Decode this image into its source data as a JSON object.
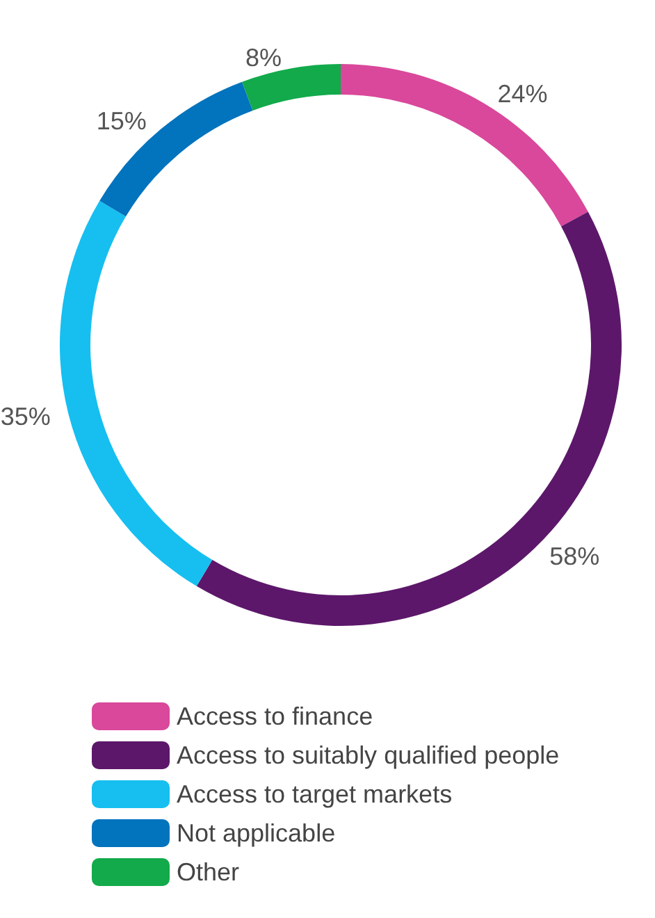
{
  "chart_data": {
    "type": "donut",
    "categories": [
      "Access to finance",
      "Access to suitably qualified people",
      "Access to target markets",
      "Not applicable",
      "Other"
    ],
    "values": [
      24,
      58,
      35,
      15,
      8
    ],
    "value_labels": [
      "24%",
      "58%",
      "35%",
      "15%",
      "8%"
    ],
    "colors": [
      "#d9489b",
      "#5c176a",
      "#16bff0",
      "#0273bd",
      "#12aa4b"
    ],
    "legend": "bottom"
  }
}
